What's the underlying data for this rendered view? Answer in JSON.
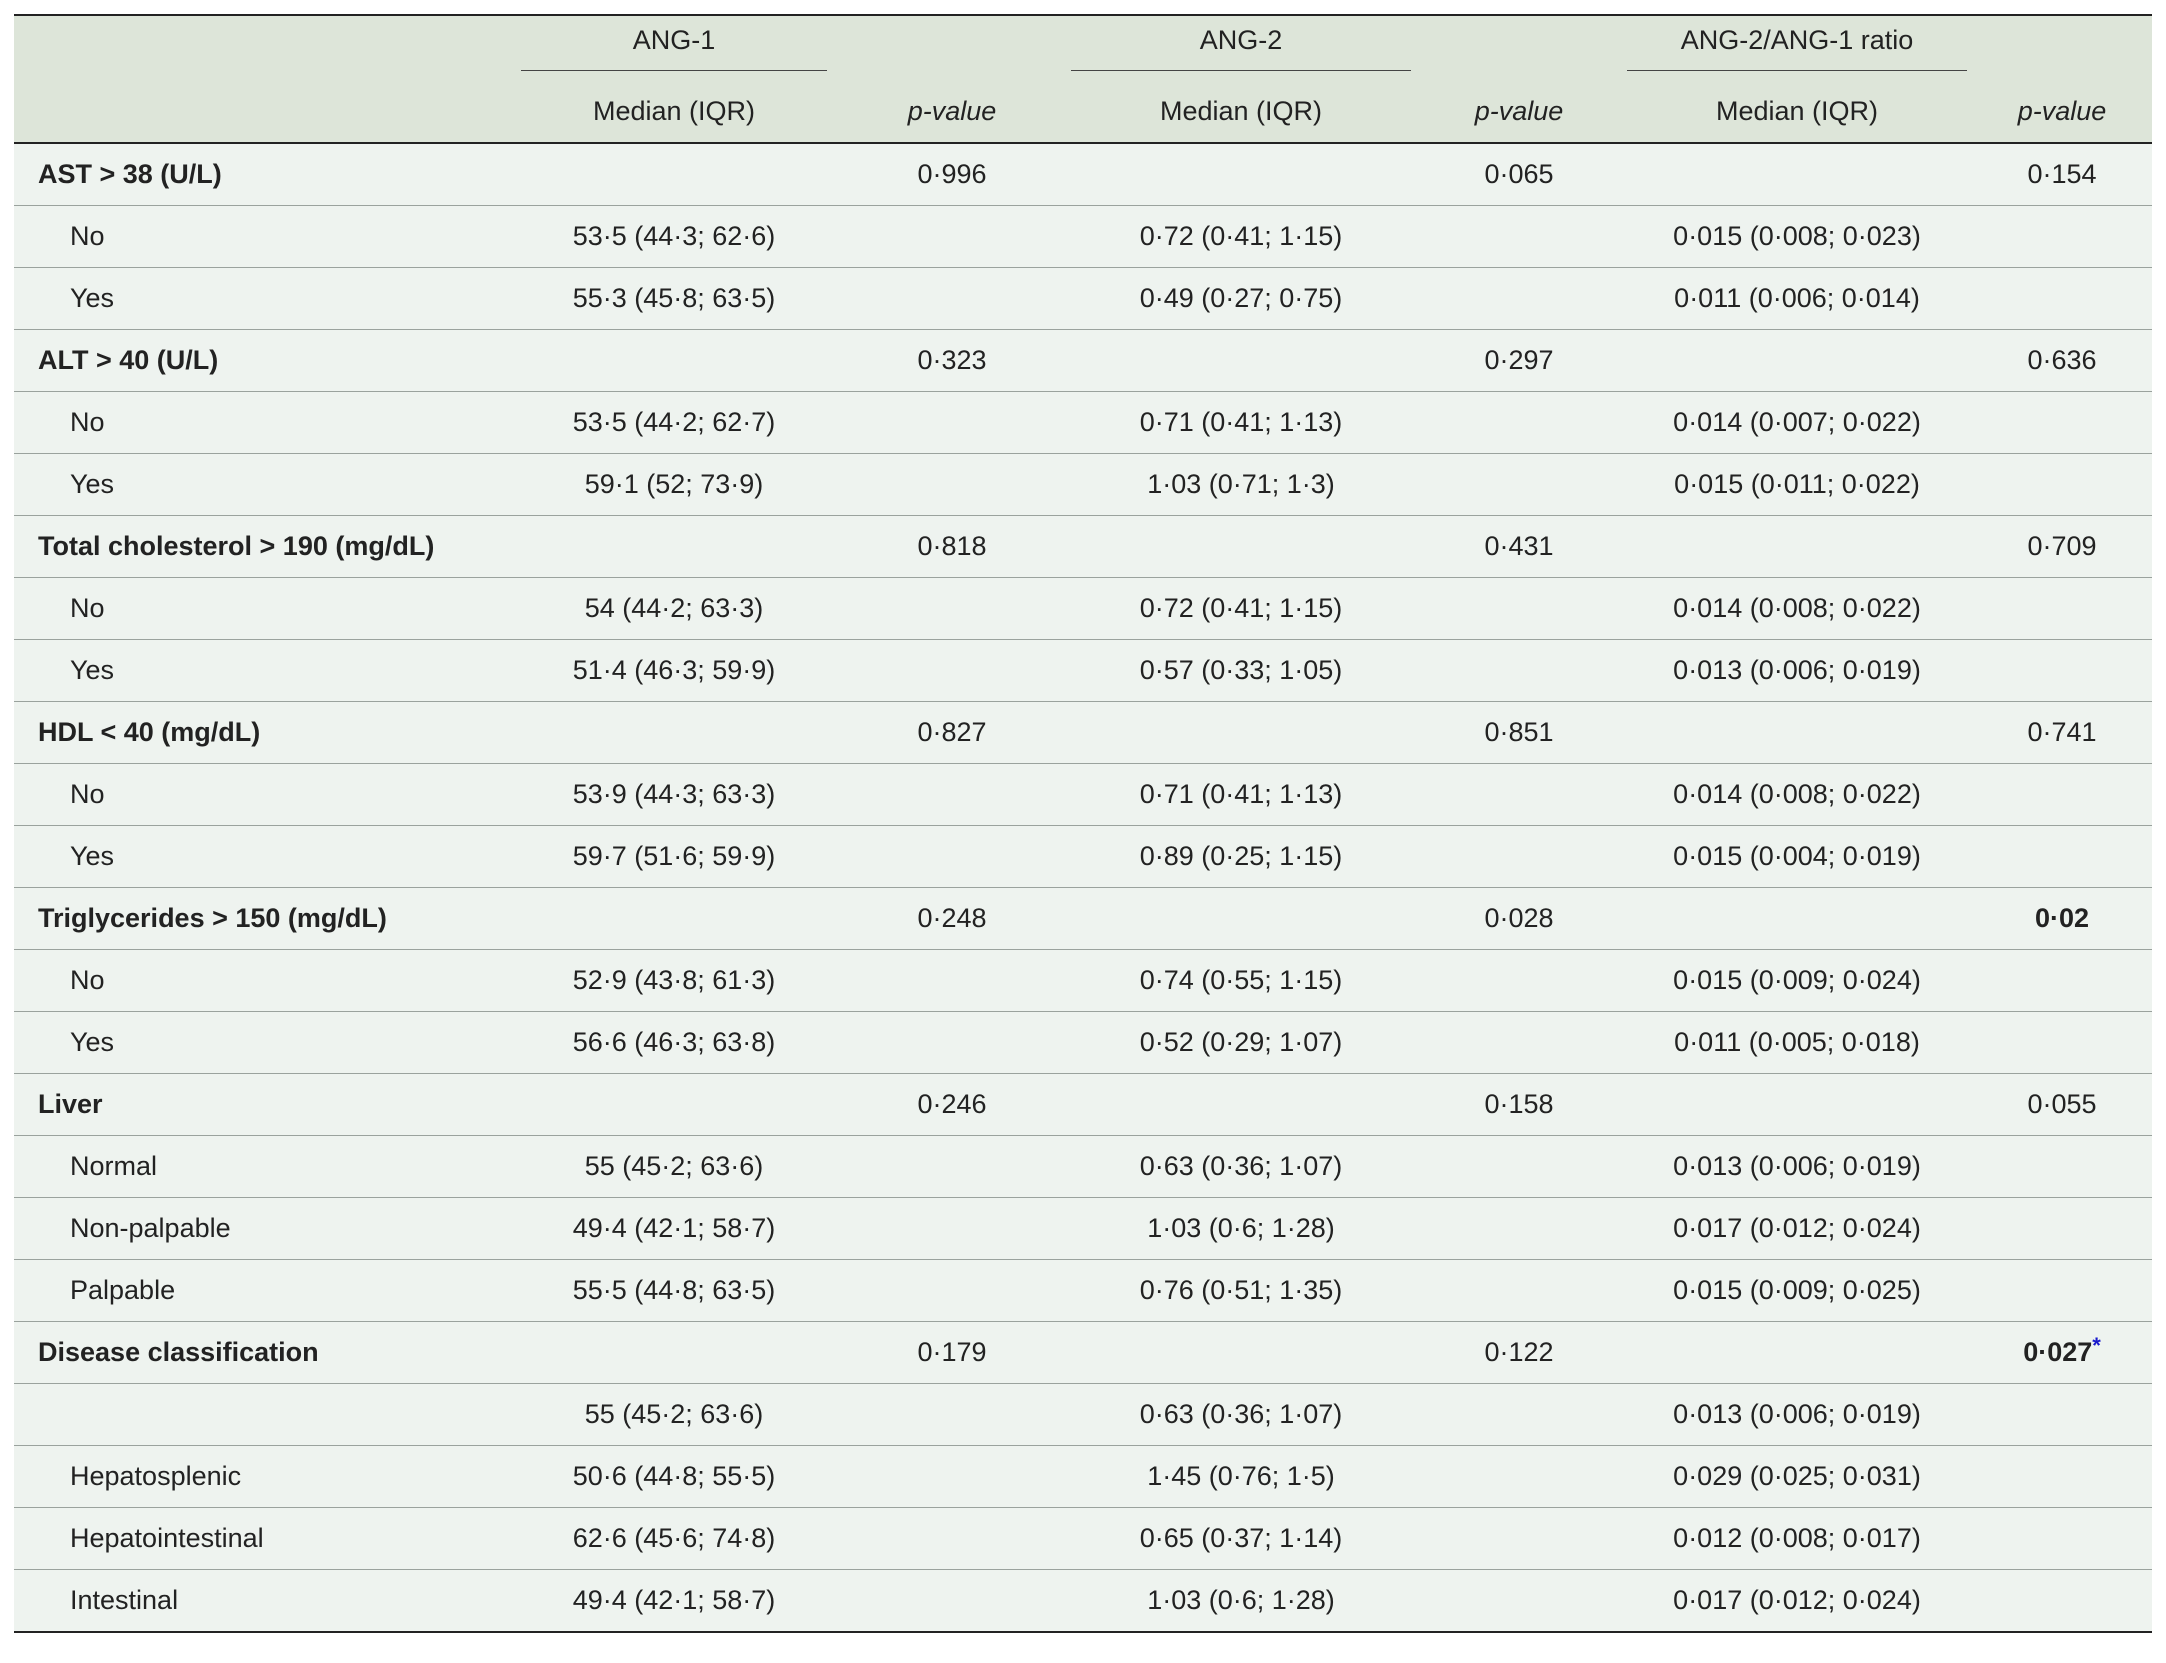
{
  "header": {
    "groups": [
      "ANG-1",
      "ANG-2",
      "ANG-2/ANG-1 ratio"
    ],
    "median_label": "Median (IQR)",
    "pvalue_label": "p-value"
  },
  "rows": [
    {
      "type": "group",
      "label": "AST > 38 (U/L)",
      "p1": "0·996",
      "p2": "0·065",
      "p3": "0·154"
    },
    {
      "type": "sub",
      "label": "No",
      "v1": "53·5 (44·3; 62·6)",
      "v2": "0·72 (0·41; 1·15)",
      "v3": "0·015 (0·008; 0·023)"
    },
    {
      "type": "sub",
      "label": "Yes",
      "v1": "55·3 (45·8; 63·5)",
      "v2": "0·49 (0·27; 0·75)",
      "v3": "0·011 (0·006; 0·014)"
    },
    {
      "type": "group",
      "label": "ALT > 40 (U/L)",
      "p1": "0·323",
      "p2": "0·297",
      "p3": "0·636"
    },
    {
      "type": "sub",
      "label": "No",
      "v1": "53·5 (44·2; 62·7)",
      "v2": "0·71 (0·41; 1·13)",
      "v3": "0·014 (0·007; 0·022)"
    },
    {
      "type": "sub",
      "label": "Yes",
      "v1": "59·1 (52; 73·9)",
      "v2": "1·03 (0·71; 1·3)",
      "v3": "0·015 (0·011; 0·022)"
    },
    {
      "type": "group",
      "label": "Total cholesterol > 190 (mg/dL)",
      "p1": "0·818",
      "p2": "0·431",
      "p3": "0·709"
    },
    {
      "type": "sub",
      "label": "No",
      "v1": "54 (44·2; 63·3)",
      "v2": "0·72 (0·41; 1·15)",
      "v3": "0·014 (0·008; 0·022)"
    },
    {
      "type": "sub",
      "label": "Yes",
      "v1": "51·4 (46·3; 59·9)",
      "v2": "0·57 (0·33; 1·05)",
      "v3": "0·013 (0·006; 0·019)"
    },
    {
      "type": "group",
      "label": "HDL < 40 (mg/dL)",
      "p1": "0·827",
      "p2": "0·851",
      "p3": "0·741"
    },
    {
      "type": "sub",
      "label": "No",
      "v1": "53·9 (44·3; 63·3)",
      "v2": "0·71 (0·41; 1·13)",
      "v3": "0·014 (0·008; 0·022)"
    },
    {
      "type": "sub",
      "label": "Yes",
      "v1": "59·7 (51·6; 59·9)",
      "v2": "0·89 (0·25; 1·15)",
      "v3": "0·015 (0·004; 0·019)"
    },
    {
      "type": "group",
      "label": "Triglycerides > 150 (mg/dL)",
      "p1": "0·248",
      "p2": "0·028",
      "p3": "0·02",
      "p3_bold": true
    },
    {
      "type": "sub",
      "label": "No",
      "v1": "52·9 (43·8; 61·3)",
      "v2": "0·74 (0·55; 1·15)",
      "v3": "0·015 (0·009; 0·024)"
    },
    {
      "type": "sub",
      "label": "Yes",
      "v1": "56·6 (46·3; 63·8)",
      "v2": "0·52 (0·29; 1·07)",
      "v3": "0·011 (0·005; 0·018)"
    },
    {
      "type": "group",
      "label": "Liver",
      "p1": "0·246",
      "p2": "0·158",
      "p3": "0·055"
    },
    {
      "type": "sub",
      "label": "Normal",
      "v1": "55 (45·2; 63·6)",
      "v2": "0·63 (0·36; 1·07)",
      "v3": "0·013 (0·006; 0·019)"
    },
    {
      "type": "sub",
      "label": "Non-palpable",
      "v1": "49·4 (42·1; 58·7)",
      "v2": "1·03 (0·6; 1·28)",
      "v3": "0·017 (0·012; 0·024)"
    },
    {
      "type": "sub",
      "label": "Palpable",
      "v1": "55·5 (44·8; 63·5)",
      "v2": "0·76 (0·51; 1·35)",
      "v3": "0·015 (0·009; 0·025)"
    },
    {
      "type": "group",
      "label": "Disease classification",
      "p1": "0·179",
      "p2": "0·122",
      "p3": "0·027",
      "p3_bold": true,
      "p3_mark": "*"
    },
    {
      "type": "sub",
      "label": "",
      "v1": "55 (45·2; 63·6)",
      "v2": "0·63 (0·36; 1·07)",
      "v3": "0·013 (0·006; 0·019)"
    },
    {
      "type": "sub",
      "label": "Hepatosplenic",
      "v1": "50·6 (44·8; 55·5)",
      "v2": "1·45 (0·76; 1·5)",
      "v3": "0·029 (0·025; 0·031)"
    },
    {
      "type": "sub",
      "label": "Hepatointestinal",
      "v1": "62·6 (45·6; 74·8)",
      "v2": "0·65 (0·37; 1·14)",
      "v3": "0·012 (0·008; 0·017)"
    },
    {
      "type": "sub",
      "label": "Intestinal",
      "v1": "49·4 (42·1; 58·7)",
      "v2": "1·03 (0·6; 1·28)",
      "v3": "0·017 (0·012; 0·024)"
    }
  ]
}
